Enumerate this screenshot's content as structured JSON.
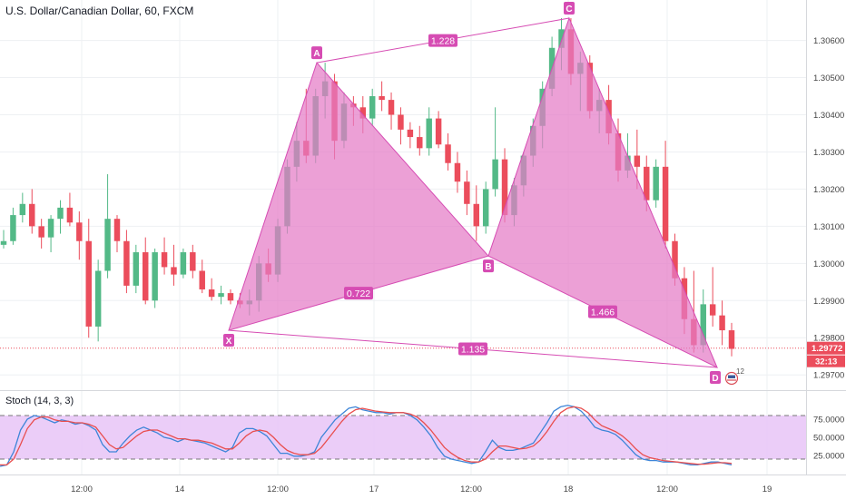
{
  "header": {
    "title": "U.S. Dollar/Canadian Dollar, 60, FXCM",
    "stoch_label": "Stoch (14, 3, 3)"
  },
  "colors": {
    "up": "#53b987",
    "down": "#eb4d5c",
    "pattern_fill": "#e47bc6",
    "pattern_line": "#d64cb3",
    "stoch_band": "#e9c8f7",
    "stoch_k": "#3d85d8",
    "stoch_d": "#e94e4e",
    "price_line": "#eb4d5c"
  },
  "price_axis": {
    "ticks": [
      "1.30600",
      "1.30500",
      "1.30400",
      "1.30300",
      "1.30200",
      "1.30100",
      "1.30000",
      "1.29900",
      "1.29800",
      "1.29700"
    ],
    "current_price": "1.29772",
    "countdown": "32:13"
  },
  "time_axis": {
    "ticks": [
      "12:00",
      "14",
      "12:00",
      "17",
      "12:00",
      "18",
      "12:00",
      "19"
    ]
  },
  "stoch_axis": {
    "ticks": [
      "75.0000",
      "50.0000",
      "25.0000"
    ]
  },
  "pattern": {
    "points": [
      "X",
      "A",
      "B",
      "C",
      "D"
    ],
    "ratios": [
      "1.228",
      "0.722",
      "1.466",
      "1.135"
    ]
  },
  "event_badge": "12",
  "chart_data": {
    "type": "candlestick",
    "title": "U.S. Dollar/Canadian Dollar, 60, FXCM",
    "ylim": [
      1.2966,
      1.3072
    ],
    "x_ticks": [
      "12:00",
      "14",
      "12:00",
      "17",
      "12:00",
      "18",
      "12:00",
      "19"
    ],
    "y_ticks": [
      1.306,
      1.305,
      1.304,
      1.303,
      1.302,
      1.301,
      1.3,
      1.299,
      1.298,
      1.297
    ],
    "current_price": 1.29772,
    "harmonic_pattern": {
      "X": 1.2982,
      "A": 1.3054,
      "B": 1.3002,
      "C": 1.3066,
      "D": 1.2972,
      "XA_label": "",
      "AB_XA": 0.722,
      "BC_AB": 1.228,
      "CD_BC": 1.466,
      "XD_XA": 1.135
    },
    "candles": [
      [
        1.3005,
        1.3009,
        1.3004,
        1.3006
      ],
      [
        1.3006,
        1.3015,
        1.3005,
        1.3013
      ],
      [
        1.3013,
        1.3019,
        1.3011,
        1.3016
      ],
      [
        1.3016,
        1.302,
        1.3008,
        1.301
      ],
      [
        1.301,
        1.3012,
        1.3004,
        1.3007
      ],
      [
        1.3007,
        1.3013,
        1.3003,
        1.3012
      ],
      [
        1.3012,
        1.3017,
        1.3008,
        1.3015
      ],
      [
        1.3015,
        1.3019,
        1.301,
        1.3011
      ],
      [
        1.3011,
        1.3014,
        1.3001,
        1.3006
      ],
      [
        1.3006,
        1.3012,
        1.298,
        1.2983
      ],
      [
        1.2983,
        1.3001,
        1.2979,
        1.2998
      ],
      [
        1.2998,
        1.3024,
        1.2996,
        1.3012
      ],
      [
        1.3012,
        1.3013,
        1.3003,
        1.3006
      ],
      [
        1.3006,
        1.3009,
        1.2992,
        1.2994
      ],
      [
        1.2994,
        1.3005,
        1.2992,
        1.3003
      ],
      [
        1.3003,
        1.3007,
        1.2989,
        1.299
      ],
      [
        1.299,
        1.3004,
        1.2988,
        1.3003
      ],
      [
        1.3003,
        1.3007,
        1.2997,
        1.2999
      ],
      [
        1.2999,
        1.3005,
        1.2994,
        1.2997
      ],
      [
        1.2997,
        1.3004,
        1.2996,
        1.3003
      ],
      [
        1.3003,
        1.3005,
        1.2996,
        1.2998
      ],
      [
        1.2998,
        1.3001,
        1.2992,
        1.2993
      ],
      [
        1.2993,
        1.2996,
        1.299,
        1.2991
      ],
      [
        1.2991,
        1.2994,
        1.2989,
        1.2992
      ],
      [
        1.2992,
        1.2993,
        1.2989,
        1.299
      ],
      [
        1.299,
        1.2992,
        1.2988,
        1.2989
      ],
      [
        1.2989,
        1.2993,
        1.2986,
        1.299
      ],
      [
        1.299,
        1.3002,
        1.2987,
        1.3
      ],
      [
        1.3,
        1.3004,
        1.2995,
        1.2997
      ],
      [
        1.2997,
        1.3012,
        1.2995,
        1.301
      ],
      [
        1.301,
        1.3028,
        1.3008,
        1.3026
      ],
      [
        1.3026,
        1.3038,
        1.3022,
        1.3033
      ],
      [
        1.3033,
        1.3047,
        1.3027,
        1.3029
      ],
      [
        1.3029,
        1.3047,
        1.3027,
        1.3045
      ],
      [
        1.3045,
        1.3054,
        1.3039,
        1.3049
      ],
      [
        1.3049,
        1.3051,
        1.3028,
        1.3033
      ],
      [
        1.3033,
        1.3046,
        1.3031,
        1.3043
      ],
      [
        1.3043,
        1.3045,
        1.3037,
        1.3042
      ],
      [
        1.3042,
        1.3045,
        1.3035,
        1.3039
      ],
      [
        1.3039,
        1.3047,
        1.3037,
        1.3045
      ],
      [
        1.3045,
        1.3049,
        1.3041,
        1.3044
      ],
      [
        1.3044,
        1.3046,
        1.3036,
        1.304
      ],
      [
        1.304,
        1.3042,
        1.3032,
        1.3036
      ],
      [
        1.3036,
        1.3038,
        1.3031,
        1.3034
      ],
      [
        1.3034,
        1.3037,
        1.3029,
        1.3031
      ],
      [
        1.3031,
        1.3042,
        1.3029,
        1.3039
      ],
      [
        1.3039,
        1.3041,
        1.3031,
        1.3032
      ],
      [
        1.3032,
        1.3035,
        1.3025,
        1.3027
      ],
      [
        1.3027,
        1.303,
        1.3019,
        1.3022
      ],
      [
        1.3022,
        1.3025,
        1.3013,
        1.3016
      ],
      [
        1.3016,
        1.3021,
        1.3006,
        1.301
      ],
      [
        1.301,
        1.3022,
        1.3008,
        1.302
      ],
      [
        1.302,
        1.3042,
        1.3018,
        1.3028
      ],
      [
        1.3028,
        1.3031,
        1.3011,
        1.3013
      ],
      [
        1.3013,
        1.3023,
        1.301,
        1.3021
      ],
      [
        1.3021,
        1.303,
        1.3018,
        1.3029
      ],
      [
        1.3029,
        1.3039,
        1.3026,
        1.3037
      ],
      [
        1.3037,
        1.3049,
        1.3031,
        1.3047
      ],
      [
        1.3047,
        1.3061,
        1.3045,
        1.3058
      ],
      [
        1.3058,
        1.3066,
        1.3052,
        1.3063
      ],
      [
        1.3063,
        1.3066,
        1.3048,
        1.3051
      ],
      [
        1.3051,
        1.3057,
        1.3041,
        1.3054
      ],
      [
        1.3054,
        1.3056,
        1.3039,
        1.3041
      ],
      [
        1.3041,
        1.3047,
        1.3035,
        1.3044
      ],
      [
        1.3044,
        1.3048,
        1.3032,
        1.3035
      ],
      [
        1.3035,
        1.3039,
        1.3022,
        1.3025
      ],
      [
        1.3025,
        1.3035,
        1.3023,
        1.3029
      ],
      [
        1.3029,
        1.3036,
        1.302,
        1.3026
      ],
      [
        1.3026,
        1.3029,
        1.3014,
        1.3017
      ],
      [
        1.3017,
        1.3028,
        1.3015,
        1.3026
      ],
      [
        1.3026,
        1.3033,
        1.3004,
        1.3006
      ],
      [
        1.3006,
        1.3008,
        1.2994,
        1.2996
      ],
      [
        1.2996,
        1.2999,
        1.2981,
        1.2985
      ],
      [
        1.2985,
        1.2998,
        1.2976,
        1.2978
      ],
      [
        1.2978,
        1.2993,
        1.2976,
        1.2989
      ],
      [
        1.2989,
        1.2999,
        1.2983,
        1.2986
      ],
      [
        1.2986,
        1.299,
        1.2978,
        1.2982
      ],
      [
        1.2982,
        1.2984,
        1.2975,
        1.2977
      ]
    ],
    "stochastic": {
      "name": "Stoch (14, 3, 3)",
      "ylim": [
        0,
        100
      ],
      "levels": [
        80,
        20
      ],
      "k": [
        10,
        12,
        30,
        60,
        75,
        80,
        78,
        74,
        70,
        74,
        72,
        68,
        70,
        66,
        60,
        40,
        30,
        30,
        42,
        52,
        60,
        64,
        60,
        56,
        50,
        48,
        44,
        48,
        46,
        44,
        42,
        38,
        34,
        30,
        36,
        56,
        62,
        62,
        58,
        52,
        40,
        28,
        28,
        24,
        24,
        26,
        30,
        50,
        62,
        74,
        82,
        90,
        92,
        88,
        86,
        84,
        84,
        82,
        84,
        84,
        80,
        74,
        64,
        52,
        36,
        24,
        20,
        18,
        16,
        14,
        16,
        30,
        46,
        36,
        32,
        32,
        34,
        38,
        42,
        56,
        70,
        86,
        92,
        94,
        92,
        86,
        76,
        64,
        60,
        58,
        54,
        46,
        36,
        26,
        20,
        18,
        18,
        16,
        16,
        16,
        14,
        12,
        12,
        14,
        16,
        16,
        14,
        12
      ],
      "d": [
        12,
        12,
        20,
        40,
        62,
        74,
        78,
        78,
        74,
        72,
        72,
        70,
        70,
        68,
        64,
        52,
        40,
        34,
        36,
        44,
        52,
        58,
        60,
        60,
        56,
        52,
        48,
        48,
        46,
        46,
        44,
        42,
        38,
        34,
        34,
        42,
        52,
        58,
        60,
        58,
        50,
        40,
        32,
        28,
        26,
        26,
        28,
        36,
        48,
        60,
        72,
        82,
        88,
        90,
        88,
        86,
        85,
        84,
        84,
        84,
        82,
        78,
        70,
        60,
        48,
        36,
        28,
        22,
        18,
        16,
        16,
        20,
        30,
        38,
        38,
        36,
        34,
        35,
        38,
        46,
        58,
        72,
        84,
        90,
        92,
        90,
        84,
        74,
        66,
        62,
        58,
        52,
        44,
        34,
        26,
        22,
        20,
        18,
        17,
        16,
        15,
        14,
        13,
        13,
        14,
        15,
        15,
        14
      ]
    }
  }
}
